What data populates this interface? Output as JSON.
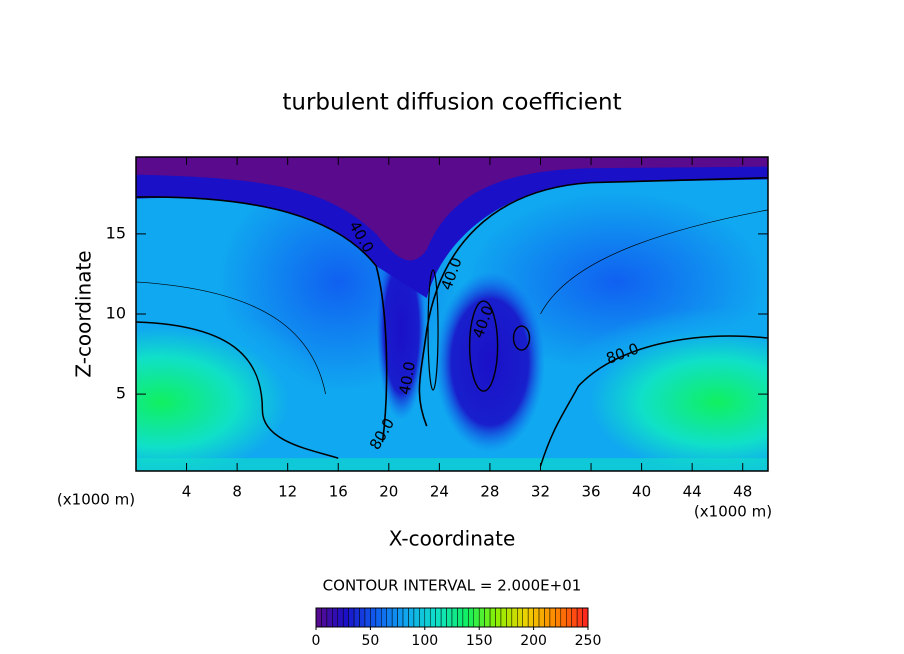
{
  "chart_data": {
    "type": "contour",
    "title": "turbulent diffusion coefficient",
    "x_label": "X-coordinate",
    "y_label": "Z-coordinate",
    "x_unit_label": "(x1000 m)",
    "xlim": [
      0,
      50
    ],
    "xticks": [
      4,
      8,
      12,
      16,
      20,
      24,
      28,
      32,
      36,
      40,
      44,
      48
    ],
    "ylim": [
      0.2,
      19.8
    ],
    "yticks": [
      5,
      10,
      15
    ],
    "contour_interval_text": "CONTOUR INTERVAL = 2.000E+01",
    "contour_labels": [
      "40.0",
      "40.0",
      "40.0",
      "40.0",
      "80.0",
      "80.0"
    ],
    "clim": [
      0,
      250
    ],
    "cticks": [
      0,
      50,
      100,
      150,
      200,
      250
    ],
    "colormap": [
      "#5a0a8c",
      "#1a10c8",
      "#1060f0",
      "#10a8f0",
      "#10e0c8",
      "#10f060",
      "#90f000",
      "#f0d000",
      "#ff8000",
      "#ff2020"
    ]
  }
}
